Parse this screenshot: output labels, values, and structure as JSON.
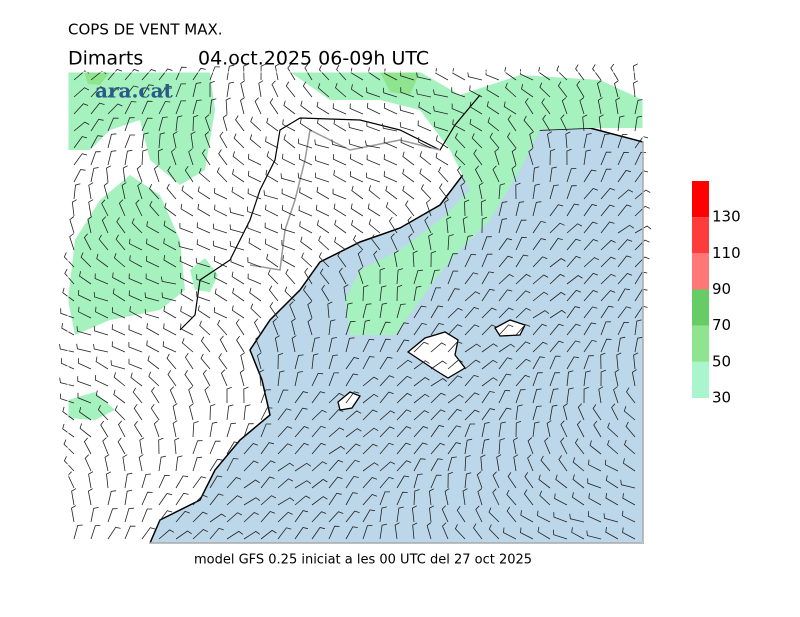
{
  "header": {
    "title": "COPS DE VENT MAX.",
    "day": "Dimarts",
    "valid": "04.oct.2025 06-09h UTC"
  },
  "logo": "ara.cat",
  "legend": {
    "ticks": [
      30,
      50,
      70,
      90,
      110,
      130
    ],
    "colors": [
      "#aaf5cc",
      "#8fe58f",
      "#66cc66",
      "#ff7777",
      "#ff3c3c",
      "#ff0000"
    ]
  },
  "footer": "model GFS 0.25 iniciat a les 00 UTC del 27 oct 2025"
}
